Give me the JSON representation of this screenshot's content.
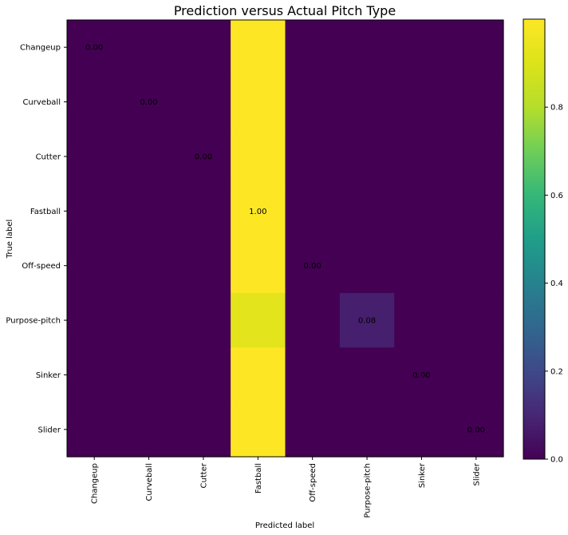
{
  "chart_data": {
    "type": "heatmap",
    "title": "Prediction versus Actual Pitch Type",
    "xlabel": "Predicted label",
    "ylabel": "True label",
    "x_categories": [
      "Changeup",
      "Curveball",
      "Cutter",
      "Fastball",
      "Off-speed",
      "Purpose-pitch",
      "Sinker",
      "Slider"
    ],
    "y_categories": [
      "Changeup",
      "Curveball",
      "Cutter",
      "Fastball",
      "Off-speed",
      "Purpose-pitch",
      "Sinker",
      "Slider"
    ],
    "values": [
      [
        0.0,
        0.0,
        0.0,
        1.0,
        0.0,
        0.0,
        0.0,
        0.0
      ],
      [
        0.0,
        0.0,
        0.0,
        1.0,
        0.0,
        0.0,
        0.0,
        0.0
      ],
      [
        0.0,
        0.0,
        0.0,
        1.0,
        0.0,
        0.0,
        0.0,
        0.0
      ],
      [
        0.0,
        0.0,
        0.0,
        1.0,
        0.0,
        0.0,
        0.0,
        0.0
      ],
      [
        0.0,
        0.0,
        0.0,
        1.0,
        0.0,
        0.0,
        0.0,
        0.0
      ],
      [
        0.0,
        0.0,
        0.0,
        0.92,
        0.0,
        0.08,
        0.0,
        0.0
      ],
      [
        0.0,
        0.0,
        0.0,
        1.0,
        0.0,
        0.0,
        0.0,
        0.0
      ],
      [
        0.0,
        0.0,
        0.0,
        1.0,
        0.0,
        0.0,
        0.0,
        0.0
      ]
    ],
    "annotations": [
      {
        "row": 0,
        "col": 0,
        "text": "0.00"
      },
      {
        "row": 1,
        "col": 1,
        "text": "0.00"
      },
      {
        "row": 2,
        "col": 2,
        "text": "0.00"
      },
      {
        "row": 3,
        "col": 3,
        "text": "1.00"
      },
      {
        "row": 4,
        "col": 4,
        "text": "0.00"
      },
      {
        "row": 5,
        "col": 5,
        "text": "0.08"
      },
      {
        "row": 6,
        "col": 6,
        "text": "0.00"
      },
      {
        "row": 7,
        "col": 7,
        "text": "0.00"
      }
    ],
    "colorbar": {
      "colormap": "viridis",
      "range": [
        0.0,
        1.0
      ],
      "ticks": [
        0.0,
        0.2,
        0.4,
        0.6,
        0.8
      ],
      "tick_labels": [
        "0.0",
        "0.2",
        "0.4",
        "0.6",
        "0.8"
      ]
    },
    "grid": false
  }
}
